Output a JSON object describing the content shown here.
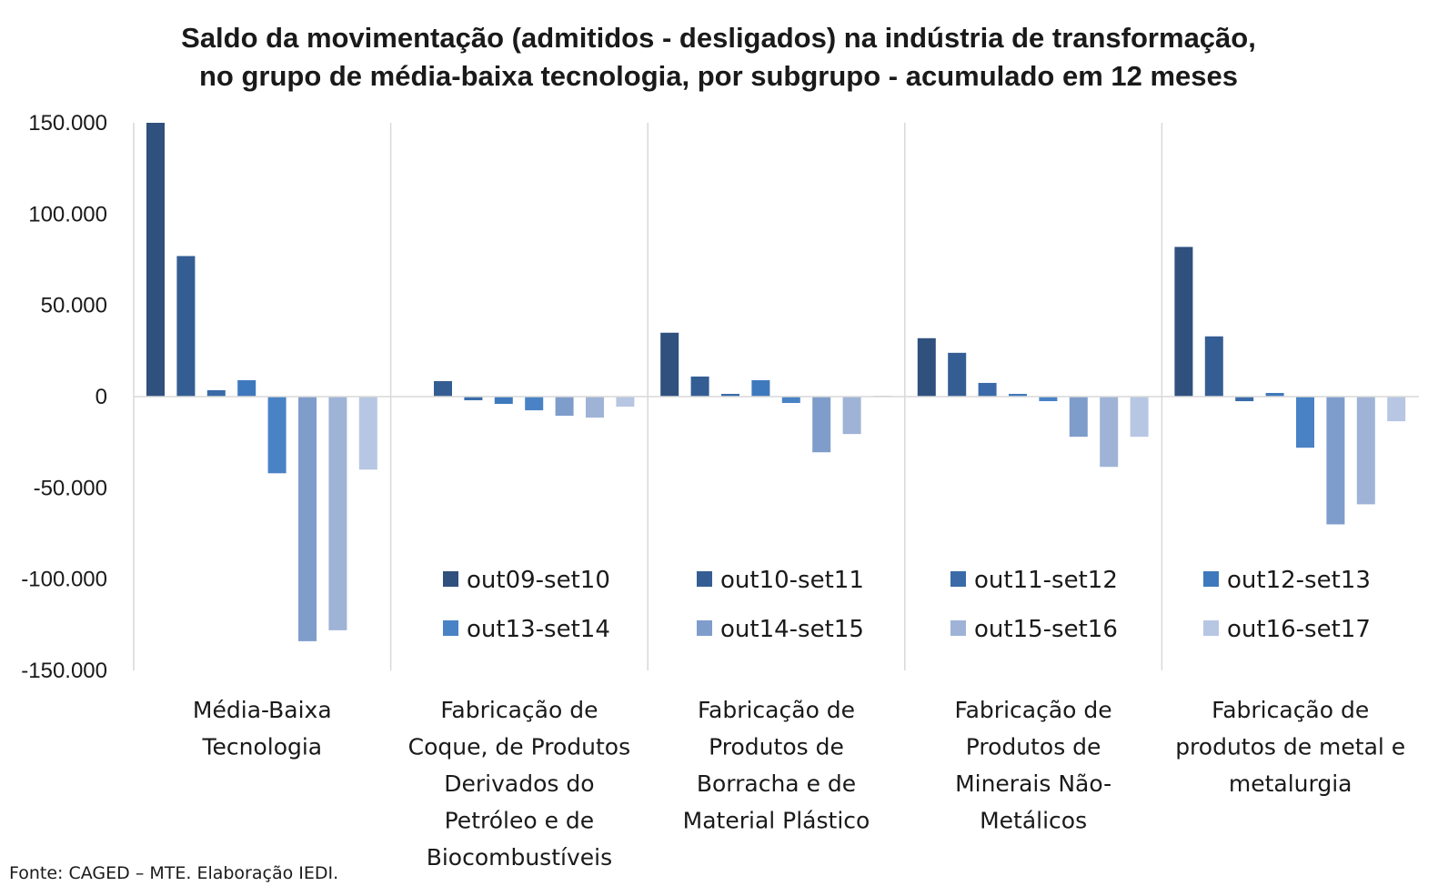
{
  "chart_data": {
    "type": "bar",
    "title": [
      "Saldo da movimentação (admitidos - desligados) na indústria de transformação,",
      "no grupo de média-baixa tecnologia, por subgrupo - acumulado em 12 meses"
    ],
    "ylim": [
      -150000,
      150000
    ],
    "yticks": [
      {
        "value": 150000,
        "label": "150.000"
      },
      {
        "value": 100000,
        "label": "100.000"
      },
      {
        "value": 50000,
        "label": "50.000"
      },
      {
        "value": 0,
        "label": "0"
      },
      {
        "value": -50000,
        "label": "-50.000"
      },
      {
        "value": -100000,
        "label": "-100.000"
      },
      {
        "value": -150000,
        "label": "-150.000"
      }
    ],
    "categories": [
      [
        "Média-Baixa",
        "Tecnologia"
      ],
      [
        "Fabricação de",
        "Coque, de Produtos",
        "Derivados do",
        "Petróleo e de",
        "Biocombustíveis"
      ],
      [
        "Fabricação de",
        "Produtos de",
        "Borracha e de",
        "Material Plástico"
      ],
      [
        "Fabricação de",
        "Produtos de",
        "Minerais Não-",
        "Metálicos"
      ],
      [
        "Fabricação de",
        "produtos de metal e",
        "metalurgia"
      ]
    ],
    "series": [
      {
        "name": "out09-set10",
        "color": "#30507e",
        "values": [
          150000,
          0,
          35000,
          32000,
          82000
        ]
      },
      {
        "name": "out10-set11",
        "color": "#345e93",
        "values": [
          77000,
          8500,
          11000,
          24000,
          33000
        ]
      },
      {
        "name": "out11-set12",
        "color": "#3a6ba8",
        "values": [
          3500,
          -2000,
          1500,
          7500,
          -2500
        ]
      },
      {
        "name": "out12-set13",
        "color": "#3f79bd",
        "values": [
          9000,
          -4000,
          9000,
          1500,
          2000
        ]
      },
      {
        "name": "out13-set14",
        "color": "#4a82c6",
        "values": [
          -42000,
          -7500,
          -3500,
          -2500,
          -28000
        ]
      },
      {
        "name": "out14-set15",
        "color": "#7f9dcb",
        "values": [
          -134000,
          -10500,
          -30500,
          -22000,
          -70000
        ]
      },
      {
        "name": "out15-set16",
        "color": "#9fb3d7",
        "values": [
          -128000,
          -11500,
          -20500,
          -38500,
          -59000
        ]
      },
      {
        "name": "out16-set17",
        "color": "#b7c6e3",
        "values": [
          -40000,
          -5500,
          500,
          -22000,
          -13500
        ]
      }
    ],
    "legend_position": "bottom-center, inside plot",
    "grid": false,
    "group_separators": true
  },
  "source": "Fonte: CAGED – MTE. Elaboração IEDI."
}
